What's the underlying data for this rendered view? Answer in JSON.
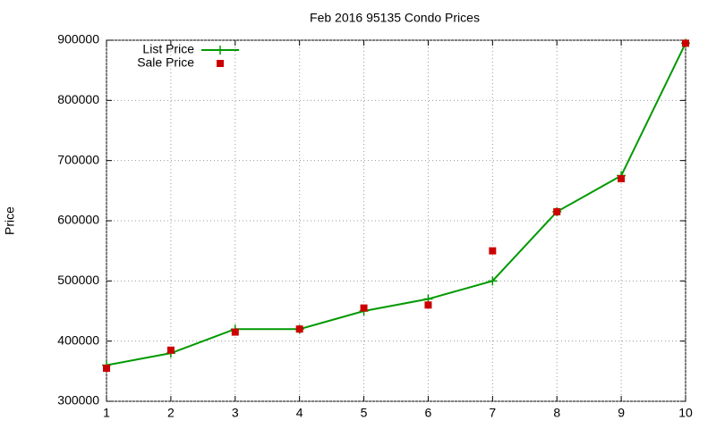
{
  "chart_data": {
    "type": "line",
    "title": "Feb 2016 95135 Condo Prices",
    "ylabel": "Price",
    "x": [
      1,
      2,
      3,
      4,
      5,
      6,
      7,
      8,
      9,
      10
    ],
    "series": [
      {
        "name": "List Price",
        "color": "#009900",
        "style": "linespoints",
        "values": [
          360000,
          380000,
          420000,
          420000,
          450000,
          470000,
          500000,
          615000,
          675000,
          895000
        ]
      },
      {
        "name": "Sale Price",
        "color": "#cc0000",
        "style": "points",
        "values": [
          355000,
          385000,
          415000,
          420000,
          455000,
          460000,
          550000,
          615000,
          670000,
          895000
        ]
      }
    ],
    "xlim": [
      1,
      10
    ],
    "xticks": [
      1,
      2,
      3,
      4,
      5,
      6,
      7,
      8,
      9,
      10
    ],
    "ylim": [
      300000,
      900000
    ],
    "yticks": [
      300000,
      400000,
      500000,
      600000,
      700000,
      800000,
      900000
    ],
    "grid": true,
    "legend": "top left"
  }
}
